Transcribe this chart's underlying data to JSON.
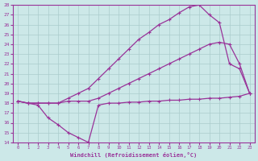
{
  "xlabel": "Windchill (Refroidissement éolien,°C)",
  "bg_color": "#cce8e8",
  "line_color": "#993399",
  "grid_color": "#aacccc",
  "xlim": [
    -0.5,
    23.5
  ],
  "ylim": [
    14,
    28
  ],
  "xticks": [
    0,
    1,
    2,
    3,
    4,
    5,
    6,
    7,
    8,
    9,
    10,
    11,
    12,
    13,
    14,
    15,
    16,
    17,
    18,
    19,
    20,
    21,
    22,
    23
  ],
  "yticks": [
    14,
    15,
    16,
    17,
    18,
    19,
    20,
    21,
    22,
    23,
    24,
    25,
    26,
    27,
    28
  ],
  "line1_x": [
    0,
    1,
    2,
    3,
    4,
    5,
    6,
    7,
    8,
    9,
    10,
    11,
    12,
    13,
    14,
    15,
    16,
    17,
    18,
    19,
    20,
    21,
    22,
    23
  ],
  "line1_y": [
    18.2,
    18.0,
    17.8,
    16.5,
    15.8,
    15.0,
    14.5,
    14.0,
    17.8,
    18.0,
    18.0,
    18.1,
    18.1,
    18.2,
    18.2,
    18.3,
    18.3,
    18.4,
    18.4,
    18.5,
    18.5,
    18.6,
    18.7,
    19.0
  ],
  "line2_x": [
    0,
    1,
    2,
    3,
    4,
    5,
    6,
    7,
    8,
    9,
    10,
    11,
    12,
    13,
    14,
    15,
    16,
    17,
    18,
    19,
    20,
    21,
    22,
    23
  ],
  "line2_y": [
    18.2,
    18.0,
    18.0,
    18.0,
    18.0,
    18.2,
    18.2,
    18.2,
    18.5,
    19.0,
    19.5,
    20.0,
    20.5,
    21.0,
    21.5,
    22.0,
    22.5,
    23.0,
    23.5,
    24.0,
    24.2,
    24.0,
    22.0,
    19.0
  ],
  "line3_x": [
    0,
    1,
    2,
    3,
    4,
    5,
    6,
    7,
    8,
    9,
    10,
    11,
    12,
    13,
    14,
    15,
    16,
    17,
    18,
    19,
    20,
    21,
    22,
    23
  ],
  "line3_y": [
    18.2,
    18.0,
    18.0,
    18.0,
    18.0,
    18.5,
    19.0,
    19.5,
    20.5,
    21.5,
    22.5,
    23.5,
    24.5,
    25.2,
    26.0,
    26.5,
    27.2,
    27.8,
    28.0,
    27.0,
    26.2,
    22.0,
    21.5,
    19.0
  ]
}
